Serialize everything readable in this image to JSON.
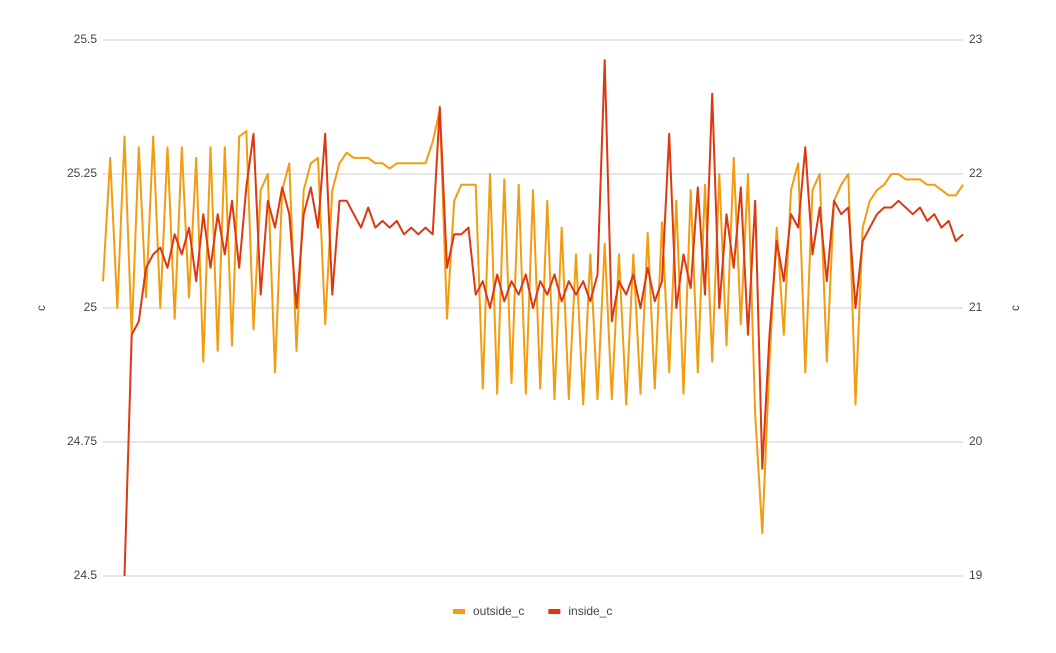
{
  "chart_data": {
    "type": "line",
    "ylabel": "c",
    "y2label": "c",
    "ylim": [
      24.5,
      25.5
    ],
    "yticks": [
      24.5,
      24.75,
      25,
      25.25,
      25.5
    ],
    "y2lim": [
      19,
      23
    ],
    "y2ticks": [
      19,
      20,
      21,
      22,
      23
    ],
    "grid": true,
    "legend": "bottom",
    "series": [
      {
        "name": "outside_c",
        "color": "#f29d0f",
        "values": [
          25.05,
          25.28,
          25.0,
          25.32,
          24.95,
          25.3,
          25.02,
          25.32,
          25.0,
          25.3,
          24.98,
          25.3,
          25.02,
          25.28,
          24.9,
          25.3,
          24.92,
          25.3,
          24.93,
          25.32,
          25.33,
          24.96,
          25.22,
          25.25,
          24.88,
          25.22,
          25.27,
          24.92,
          25.22,
          25.27,
          25.28,
          24.97,
          25.22,
          25.27,
          25.29,
          25.28,
          25.28,
          25.28,
          25.27,
          25.27,
          25.26,
          25.27,
          25.27,
          25.27,
          25.27,
          25.27,
          25.31,
          25.37,
          24.98,
          25.2,
          25.23,
          25.23,
          25.23,
          24.85,
          25.25,
          24.84,
          25.24,
          24.86,
          25.23,
          24.84,
          25.22,
          24.85,
          25.2,
          24.83,
          25.15,
          24.83,
          25.1,
          24.82,
          25.1,
          24.83,
          25.12,
          24.83,
          25.1,
          24.82,
          25.1,
          24.84,
          25.14,
          24.85,
          25.16,
          24.88,
          25.2,
          24.84,
          25.22,
          24.88,
          25.23,
          24.9,
          25.25,
          24.93,
          25.28,
          24.97,
          25.25,
          24.8,
          24.58,
          24.9,
          25.15,
          24.95,
          25.22,
          25.27,
          24.88,
          25.22,
          25.25,
          24.9,
          25.2,
          25.23,
          25.25,
          24.82,
          25.15,
          25.2,
          25.22,
          25.23,
          25.25,
          25.25,
          25.24,
          25.24,
          25.24,
          25.23,
          25.23,
          25.22,
          25.21,
          25.21,
          25.23
        ]
      },
      {
        "name": "inside_c",
        "color": "#dc3912",
        "axis": "y2",
        "values": [
          null,
          null,
          null,
          19.0,
          20.8,
          20.9,
          21.3,
          21.4,
          21.45,
          21.3,
          21.55,
          21.4,
          21.6,
          21.2,
          21.7,
          21.3,
          21.7,
          21.4,
          21.8,
          21.3,
          21.9,
          22.3,
          21.1,
          21.8,
          21.6,
          21.9,
          21.7,
          21.0,
          21.7,
          21.9,
          21.6,
          22.3,
          21.1,
          21.8,
          21.8,
          21.7,
          21.6,
          21.75,
          21.6,
          21.65,
          21.6,
          21.65,
          21.55,
          21.6,
          21.55,
          21.6,
          21.55,
          22.5,
          21.3,
          21.55,
          21.55,
          21.6,
          21.1,
          21.2,
          21.0,
          21.25,
          21.05,
          21.2,
          21.1,
          21.25,
          21.0,
          21.2,
          21.1,
          21.25,
          21.05,
          21.2,
          21.1,
          21.2,
          21.05,
          21.25,
          22.85,
          20.9,
          21.2,
          21.1,
          21.25,
          21.0,
          21.3,
          21.05,
          21.2,
          22.3,
          21.0,
          21.4,
          21.15,
          21.9,
          21.1,
          22.6,
          21.0,
          21.7,
          21.3,
          21.9,
          20.8,
          21.8,
          19.8,
          20.8,
          21.5,
          21.2,
          21.7,
          21.6,
          22.2,
          21.4,
          21.75,
          21.2,
          21.8,
          21.7,
          21.75,
          21.0,
          21.5,
          21.6,
          21.7,
          21.75,
          21.75,
          21.8,
          21.75,
          21.7,
          21.75,
          21.65,
          21.7,
          21.6,
          21.65,
          21.5,
          21.55
        ]
      }
    ]
  }
}
